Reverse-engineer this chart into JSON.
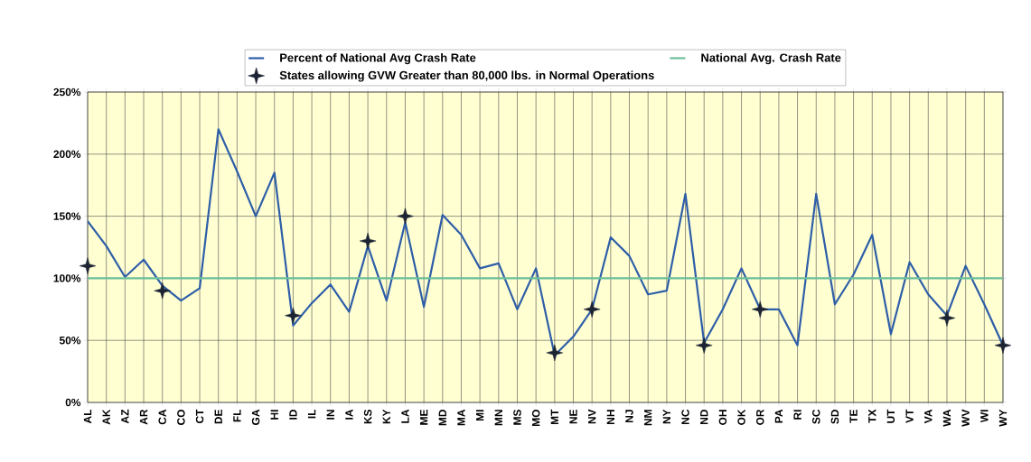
{
  "chart_data": {
    "type": "line",
    "categories": [
      "AL",
      "AK",
      "AZ",
      "AR",
      "CA",
      "CO",
      "CT",
      "DE",
      "FL",
      "GA",
      "HI",
      "ID",
      "IL",
      "IN",
      "IA",
      "KS",
      "KY",
      "LA",
      "ME",
      "MD",
      "MA",
      "MI",
      "MN",
      "MS",
      "MO",
      "MT",
      "NE",
      "NV",
      "NH",
      "NJ",
      "NM",
      "NY",
      "NC",
      "ND",
      "OH",
      "OK",
      "OR",
      "PA",
      "RI",
      "SC",
      "SD",
      "TE",
      "TX",
      "UT",
      "VT",
      "VA",
      "WA",
      "WV",
      "WI",
      "WY"
    ],
    "series": [
      {
        "name": "Percent of National Avg Crash Rate",
        "color": "#2e5ea8",
        "values": [
          146,
          126,
          101,
          115,
          94,
          82,
          92,
          220,
          186,
          150,
          185,
          62,
          80,
          95,
          73,
          126,
          82,
          145,
          77,
          151,
          135,
          108,
          112,
          75,
          108,
          38,
          53,
          75,
          133,
          118,
          87,
          90,
          168,
          48,
          75,
          108,
          75,
          75,
          46,
          168,
          79,
          103,
          135,
          55,
          113,
          87,
          70,
          110,
          79,
          46
        ]
      },
      {
        "name": "National Avg. Crash Rate",
        "color": "#6cbf9a",
        "values": [
          100,
          100,
          100,
          100,
          100,
          100,
          100,
          100,
          100,
          100,
          100,
          100,
          100,
          100,
          100,
          100,
          100,
          100,
          100,
          100,
          100,
          100,
          100,
          100,
          100,
          100,
          100,
          100,
          100,
          100,
          100,
          100,
          100,
          100,
          100,
          100,
          100,
          100,
          100,
          100,
          100,
          100,
          100,
          100,
          100,
          100,
          100,
          100,
          100,
          100
        ]
      },
      {
        "name": "States allowing GVW Greater than 80,000 lbs. in Normal Operations",
        "type": "scatter",
        "marker": "star",
        "color": "#1c2333",
        "values": [
          110,
          null,
          null,
          null,
          90,
          null,
          null,
          null,
          null,
          null,
          null,
          70,
          null,
          null,
          null,
          130,
          null,
          150,
          null,
          null,
          null,
          null,
          null,
          null,
          null,
          40,
          null,
          75,
          null,
          null,
          null,
          null,
          null,
          46,
          null,
          null,
          75,
          null,
          null,
          null,
          null,
          null,
          null,
          null,
          null,
          null,
          68,
          null,
          null,
          46
        ]
      }
    ],
    "ylim": [
      0,
      250
    ],
    "yticks": [
      {
        "value": 0,
        "label": "0%"
      },
      {
        "value": 50,
        "label": "50%"
      },
      {
        "value": 100,
        "label": "100%"
      },
      {
        "value": 150,
        "label": "150%"
      },
      {
        "value": 200,
        "label": "200%"
      },
      {
        "value": 250,
        "label": "250%"
      }
    ],
    "grid": true,
    "legend": "top"
  }
}
